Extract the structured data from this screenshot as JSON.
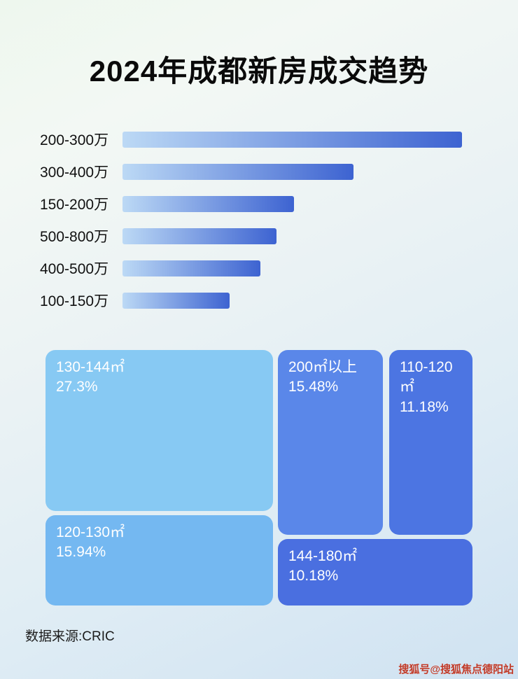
{
  "title": "2024年成都新房成交趋势",
  "chart_data": [
    {
      "type": "bar",
      "orientation": "horizontal",
      "categories": [
        "200-300万",
        "300-400万",
        "150-200万",
        "500-800万",
        "400-500万",
        "100-150万"
      ],
      "values": [
        100,
        68,
        50.5,
        45.4,
        40.6,
        31.5
      ],
      "value_note": "relative bar length as % of longest bar; chart shows no numeric axis or data labels",
      "legend": "none",
      "grid": "off"
    },
    {
      "type": "treemap",
      "items": [
        {
          "label": "130-144㎡",
          "value": "27.3%",
          "color": "#87c9f3"
        },
        {
          "label": "120-130㎡",
          "value": "15.94%",
          "color": "#74b8f1"
        },
        {
          "label": "200㎡以上",
          "value": "15.48%",
          "color": "#5a87e9"
        },
        {
          "label": "110-120㎡",
          "value": "11.18%",
          "color": "#4c75e2"
        },
        {
          "label": "144-180㎡",
          "value": "10.18%",
          "color": "#4a6fe0"
        }
      ]
    }
  ],
  "footer": {
    "source_label": "数据来源:CRIC"
  },
  "watermark": "搜狐号@搜狐焦点德阳站",
  "colors": {
    "bar_gradient_start": "#bcd9f5",
    "bar_gradient_end": "#3d63d1",
    "title_text": "#0a0a0a",
    "watermark_text": "#c03a28"
  }
}
